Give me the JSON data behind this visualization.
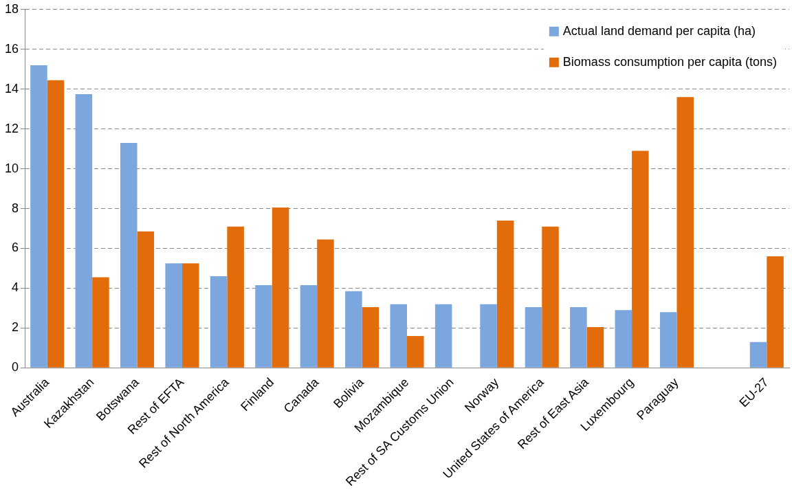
{
  "chart_data": {
    "type": "bar",
    "categories": [
      "Australia",
      "Kazakhstan",
      "Botswana",
      "Rest of EFTA",
      "Rest of North America",
      "Finland",
      "Canada",
      "Bolivia",
      "Mozambique",
      "Rest of SA Customs Union",
      "Norway",
      "United States of America",
      "Rest of East Asia",
      "Luxembourg",
      "Paraguay",
      null,
      "EU-27"
    ],
    "series": [
      {
        "name": "Actual land demand per capita (ha)",
        "color": "#7ba7de",
        "values": [
          15.2,
          13.75,
          11.3,
          5.25,
          4.6,
          4.15,
          4.15,
          3.85,
          3.2,
          3.2,
          3.2,
          3.05,
          3.05,
          2.9,
          2.8,
          null,
          1.3
        ]
      },
      {
        "name": "Biomass consumption per capita (tons)",
        "color": "#e36c0a",
        "values": [
          14.45,
          4.55,
          6.85,
          5.25,
          7.1,
          8.05,
          6.45,
          3.05,
          1.6,
          null,
          7.4,
          7.1,
          2.05,
          10.9,
          13.6,
          null,
          5.6
        ]
      }
    ],
    "ylim": [
      0,
      18
    ],
    "yticks": [
      0,
      2,
      4,
      6,
      8,
      10,
      12,
      14,
      16,
      18
    ],
    "grid": "y",
    "legend": "top right"
  }
}
